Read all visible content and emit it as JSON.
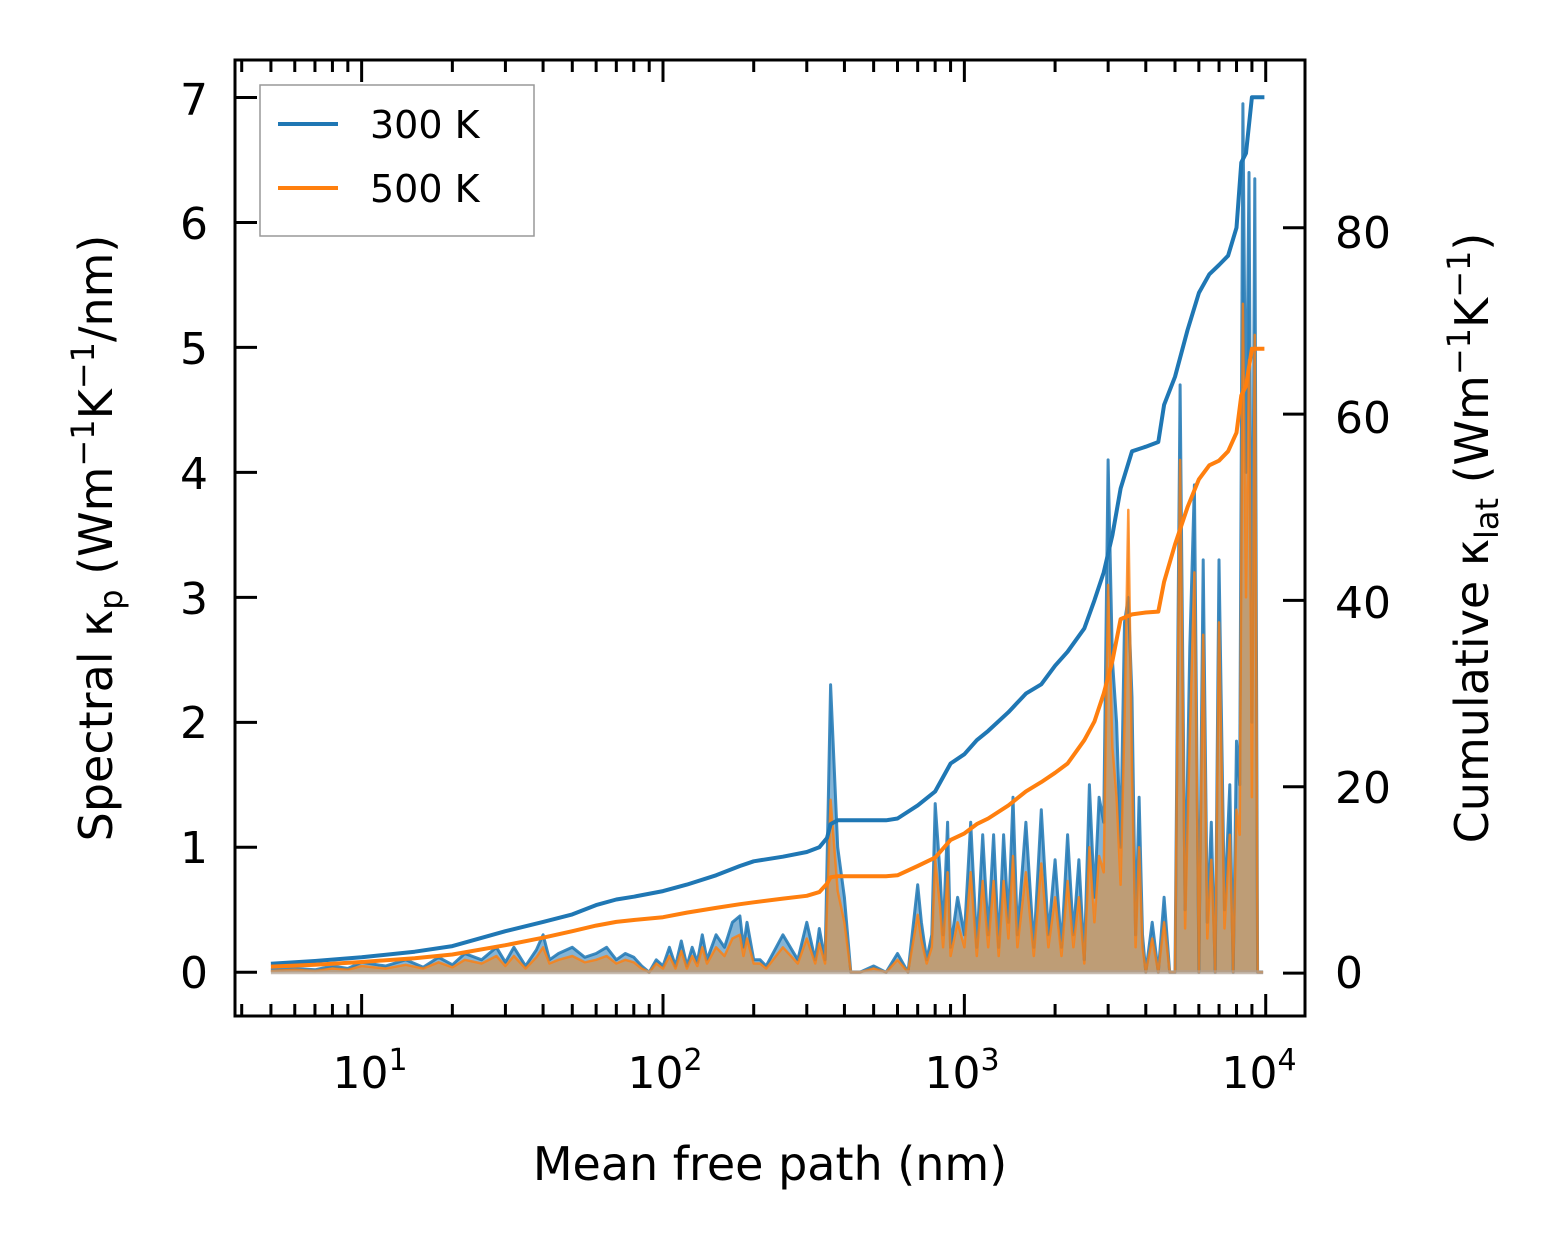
{
  "chart_data": {
    "type": "line",
    "xlabel": "Mean free path (nm)",
    "ylabel_left": {
      "main": "Spectral κ",
      "sub": "p",
      "unit": " (Wm",
      "e1": "−1",
      "k": "K",
      "e2": "−1",
      "tail": "/nm)"
    },
    "ylabel_right": {
      "main": "Cumulative κ",
      "sub": "lat",
      "unit": " (Wm",
      "e1": "−1",
      "k": "K",
      "e2": "−1",
      "tail": ")"
    },
    "x_scale": "log",
    "xlim": [
      3.8,
      13500
    ],
    "ylim_left": [
      -0.35,
      7.3
    ],
    "ylim_right": [
      -4.6,
      98
    ],
    "x_ticks": [
      {
        "base": "10",
        "exp": "1",
        "value": 10
      },
      {
        "base": "10",
        "exp": "2",
        "value": 100
      },
      {
        "base": "10",
        "exp": "3",
        "value": 1000
      },
      {
        "base": "10",
        "exp": "4",
        "value": 10000
      }
    ],
    "y_ticks_left": [
      "0",
      "1",
      "2",
      "3",
      "4",
      "5",
      "6",
      "7"
    ],
    "y_ticks_right": [
      "0",
      "20",
      "40",
      "60",
      "80"
    ],
    "legend": {
      "position": "top-left",
      "entries": [
        "300 K",
        "500 K"
      ]
    },
    "colors": {
      "t300": "#1f77b4",
      "t500": "#ff7f0e",
      "fill": "#c49a6c"
    },
    "spectral_300K": {
      "x": [
        5,
        6,
        7,
        8,
        9,
        10,
        12,
        14,
        16,
        18,
        20,
        22,
        25,
        28,
        30,
        32,
        35,
        38,
        40,
        42,
        45,
        50,
        55,
        60,
        65,
        70,
        75,
        80,
        85,
        90,
        95,
        100,
        105,
        110,
        115,
        120,
        125,
        130,
        135,
        140,
        150,
        160,
        170,
        180,
        185,
        190,
        200,
        210,
        220,
        250,
        280,
        300,
        320,
        330,
        345,
        360,
        380,
        400,
        420,
        450,
        500,
        550,
        600,
        650,
        700,
        720,
        750,
        780,
        800,
        830,
        850,
        880,
        900,
        950,
        1000,
        1050,
        1100,
        1150,
        1200,
        1250,
        1300,
        1350,
        1400,
        1450,
        1500,
        1600,
        1700,
        1800,
        1900,
        2000,
        2100,
        2200,
        2300,
        2400,
        2500,
        2600,
        2700,
        2800,
        2900,
        3000,
        3100,
        3200,
        3300,
        3400,
        3500,
        3600,
        3700,
        3800,
        3900,
        4000,
        4200,
        4400,
        4600,
        4800,
        5000,
        5200,
        5400,
        5600,
        5800,
        6000,
        6200,
        6400,
        6600,
        6800,
        7000,
        7300,
        7600,
        7800,
        8000,
        8200,
        8400,
        8600,
        8800,
        9000,
        9200,
        9400,
        9600,
        9800
      ],
      "y": [
        0.02,
        0.03,
        0.02,
        0.05,
        0.03,
        0.08,
        0.05,
        0.1,
        0.04,
        0.12,
        0.06,
        0.15,
        0.1,
        0.2,
        0.08,
        0.2,
        0.05,
        0.18,
        0.3,
        0.1,
        0.15,
        0.2,
        0.12,
        0.15,
        0.2,
        0.1,
        0.15,
        0.12,
        0.05,
        0.0,
        0.1,
        0.05,
        0.2,
        0.05,
        0.25,
        0.05,
        0.2,
        0.08,
        0.3,
        0.1,
        0.3,
        0.2,
        0.4,
        0.45,
        0.2,
        0.4,
        0.1,
        0.1,
        0.05,
        0.3,
        0.1,
        0.4,
        0.1,
        0.35,
        0.1,
        2.3,
        1.0,
        0.6,
        0.0,
        0.0,
        0.05,
        0.0,
        0.15,
        0.0,
        0.7,
        0.4,
        0.1,
        0.3,
        1.35,
        0.8,
        0.3,
        1.2,
        0.2,
        0.6,
        0.3,
        1.2,
        0.2,
        1.1,
        0.3,
        1.1,
        0.2,
        1.1,
        0.4,
        1.4,
        0.3,
        1.2,
        0.2,
        1.3,
        0.3,
        0.9,
        0.2,
        1.1,
        0.3,
        0.9,
        0.1,
        1.5,
        0.6,
        1.4,
        1.2,
        4.1,
        2.5,
        2.0,
        1.0,
        2.8,
        3.0,
        2.2,
        0.3,
        1.4,
        0.3,
        0.0,
        0.4,
        0.0,
        0.6,
        0.0,
        0.0,
        4.7,
        0.5,
        2.6,
        3.9,
        0.0,
        3.3,
        0.4,
        1.2,
        0.0,
        3.3,
        0.5,
        1.5,
        0.0,
        1.85,
        1.5,
        6.95,
        4.0,
        6.4,
        2.0,
        6.35,
        0.0,
        0.0,
        0.0
      ]
    },
    "spectral_500K": {
      "x": [
        5,
        6,
        7,
        8,
        9,
        10,
        12,
        14,
        16,
        18,
        20,
        22,
        25,
        28,
        30,
        32,
        35,
        38,
        40,
        42,
        45,
        50,
        55,
        60,
        65,
        70,
        75,
        80,
        85,
        90,
        95,
        100,
        105,
        110,
        115,
        120,
        125,
        130,
        135,
        140,
        150,
        160,
        170,
        180,
        185,
        190,
        200,
        210,
        220,
        250,
        280,
        300,
        320,
        330,
        345,
        360,
        380,
        400,
        420,
        450,
        500,
        550,
        600,
        650,
        700,
        720,
        750,
        780,
        800,
        830,
        850,
        880,
        900,
        950,
        1000,
        1050,
        1100,
        1150,
        1200,
        1250,
        1300,
        1350,
        1400,
        1450,
        1500,
        1600,
        1700,
        1800,
        1900,
        2000,
        2100,
        2200,
        2300,
        2400,
        2500,
        2600,
        2700,
        2800,
        2900,
        3000,
        3100,
        3200,
        3300,
        3400,
        3500,
        3600,
        3700,
        3800,
        3900,
        4000,
        4200,
        4400,
        4600,
        4800,
        5000,
        5200,
        5400,
        5600,
        5800,
        6000,
        6200,
        6400,
        6600,
        6800,
        7000,
        7300,
        7600,
        7800,
        8000,
        8200,
        8400,
        8600,
        8800,
        9000,
        9200,
        9400,
        9600,
        9800
      ],
      "y": [
        0.01,
        0.02,
        0.01,
        0.03,
        0.02,
        0.05,
        0.03,
        0.06,
        0.03,
        0.08,
        0.04,
        0.1,
        0.07,
        0.13,
        0.05,
        0.13,
        0.03,
        0.12,
        0.2,
        0.07,
        0.1,
        0.13,
        0.08,
        0.1,
        0.13,
        0.07,
        0.1,
        0.08,
        0.03,
        0.0,
        0.07,
        0.03,
        0.13,
        0.03,
        0.17,
        0.03,
        0.13,
        0.05,
        0.2,
        0.07,
        0.2,
        0.13,
        0.27,
        0.3,
        0.13,
        0.27,
        0.07,
        0.07,
        0.03,
        0.2,
        0.07,
        0.27,
        0.07,
        0.23,
        0.07,
        1.38,
        0.65,
        0.4,
        0.0,
        0.0,
        0.03,
        0.0,
        0.1,
        0.0,
        0.46,
        0.26,
        0.07,
        0.2,
        0.9,
        0.53,
        0.2,
        0.8,
        0.13,
        0.4,
        0.2,
        0.8,
        0.13,
        0.73,
        0.2,
        0.73,
        0.13,
        0.73,
        0.27,
        0.93,
        0.2,
        0.8,
        0.13,
        0.87,
        0.2,
        0.6,
        0.13,
        0.73,
        0.2,
        0.6,
        0.07,
        1.0,
        0.4,
        0.93,
        0.8,
        3.1,
        1.8,
        1.4,
        0.7,
        2.0,
        3.7,
        1.6,
        0.2,
        1.0,
        0.2,
        0.0,
        0.27,
        0.0,
        0.4,
        0.0,
        0.0,
        4.1,
        0.35,
        1.9,
        3.2,
        0.0,
        2.7,
        0.27,
        0.9,
        0.0,
        2.8,
        0.35,
        1.1,
        0.0,
        1.3,
        1.1,
        5.35,
        3.0,
        4.9,
        1.4,
        5.1,
        0.0,
        0.0,
        0.0
      ]
    },
    "cumulative_300K": {
      "x": [
        5,
        7,
        10,
        15,
        20,
        30,
        40,
        50,
        60,
        70,
        80,
        100,
        120,
        150,
        180,
        200,
        250,
        300,
        330,
        350,
        360,
        380,
        400,
        450,
        500,
        550,
        600,
        700,
        800,
        900,
        1000,
        1100,
        1200,
        1400,
        1600,
        1800,
        2000,
        2200,
        2500,
        2700,
        2900,
        3100,
        3300,
        3600,
        4000,
        4400,
        4600,
        5000,
        5500,
        6000,
        6500,
        7000,
        7500,
        8000,
        8300,
        8600,
        9000,
        9500,
        9900
      ],
      "y": [
        1.0,
        1.3,
        1.7,
        2.3,
        2.9,
        4.5,
        5.5,
        6.3,
        7.3,
        7.9,
        8.2,
        8.8,
        9.5,
        10.5,
        11.5,
        12.0,
        12.5,
        13.0,
        13.5,
        14.5,
        16.0,
        16.4,
        16.4,
        16.4,
        16.4,
        16.4,
        16.6,
        18.0,
        19.5,
        22.5,
        23.5,
        25.0,
        26.0,
        28.0,
        30.0,
        31.0,
        33.0,
        34.5,
        37.0,
        40.0,
        43.0,
        47.0,
        52.0,
        56.0,
        56.5,
        57.0,
        61.0,
        64.0,
        69.0,
        73.0,
        75.0,
        76.0,
        77.0,
        80.0,
        87.0,
        88.0,
        94.0,
        94.0,
        94.0
      ]
    },
    "cumulative_500K": {
      "x": [
        5,
        7,
        10,
        15,
        20,
        30,
        40,
        50,
        60,
        70,
        80,
        100,
        120,
        150,
        180,
        200,
        250,
        300,
        330,
        350,
        360,
        380,
        400,
        450,
        500,
        550,
        600,
        700,
        800,
        900,
        1000,
        1100,
        1200,
        1400,
        1600,
        1800,
        2000,
        2200,
        2500,
        2700,
        2900,
        3100,
        3300,
        3600,
        4000,
        4400,
        4600,
        5000,
        5500,
        6000,
        6500,
        7000,
        7500,
        8000,
        8300,
        8600,
        9000,
        9500,
        9900
      ],
      "y": [
        0.7,
        0.9,
        1.2,
        1.6,
        2.0,
        3.0,
        3.8,
        4.5,
        5.1,
        5.5,
        5.7,
        6.0,
        6.5,
        7.0,
        7.4,
        7.6,
        8.0,
        8.3,
        8.7,
        9.6,
        10.3,
        10.4,
        10.4,
        10.4,
        10.4,
        10.4,
        10.5,
        11.5,
        12.4,
        14.3,
        15.0,
        16.0,
        16.6,
        18.0,
        19.5,
        20.5,
        21.5,
        22.5,
        25.0,
        27.0,
        30.0,
        33.5,
        38.0,
        38.5,
        38.7,
        38.8,
        42.0,
        46.0,
        50.0,
        53.0,
        54.5,
        55.0,
        56.0,
        58.0,
        62.0,
        63.0,
        67.0,
        67.0,
        67.0
      ]
    }
  }
}
